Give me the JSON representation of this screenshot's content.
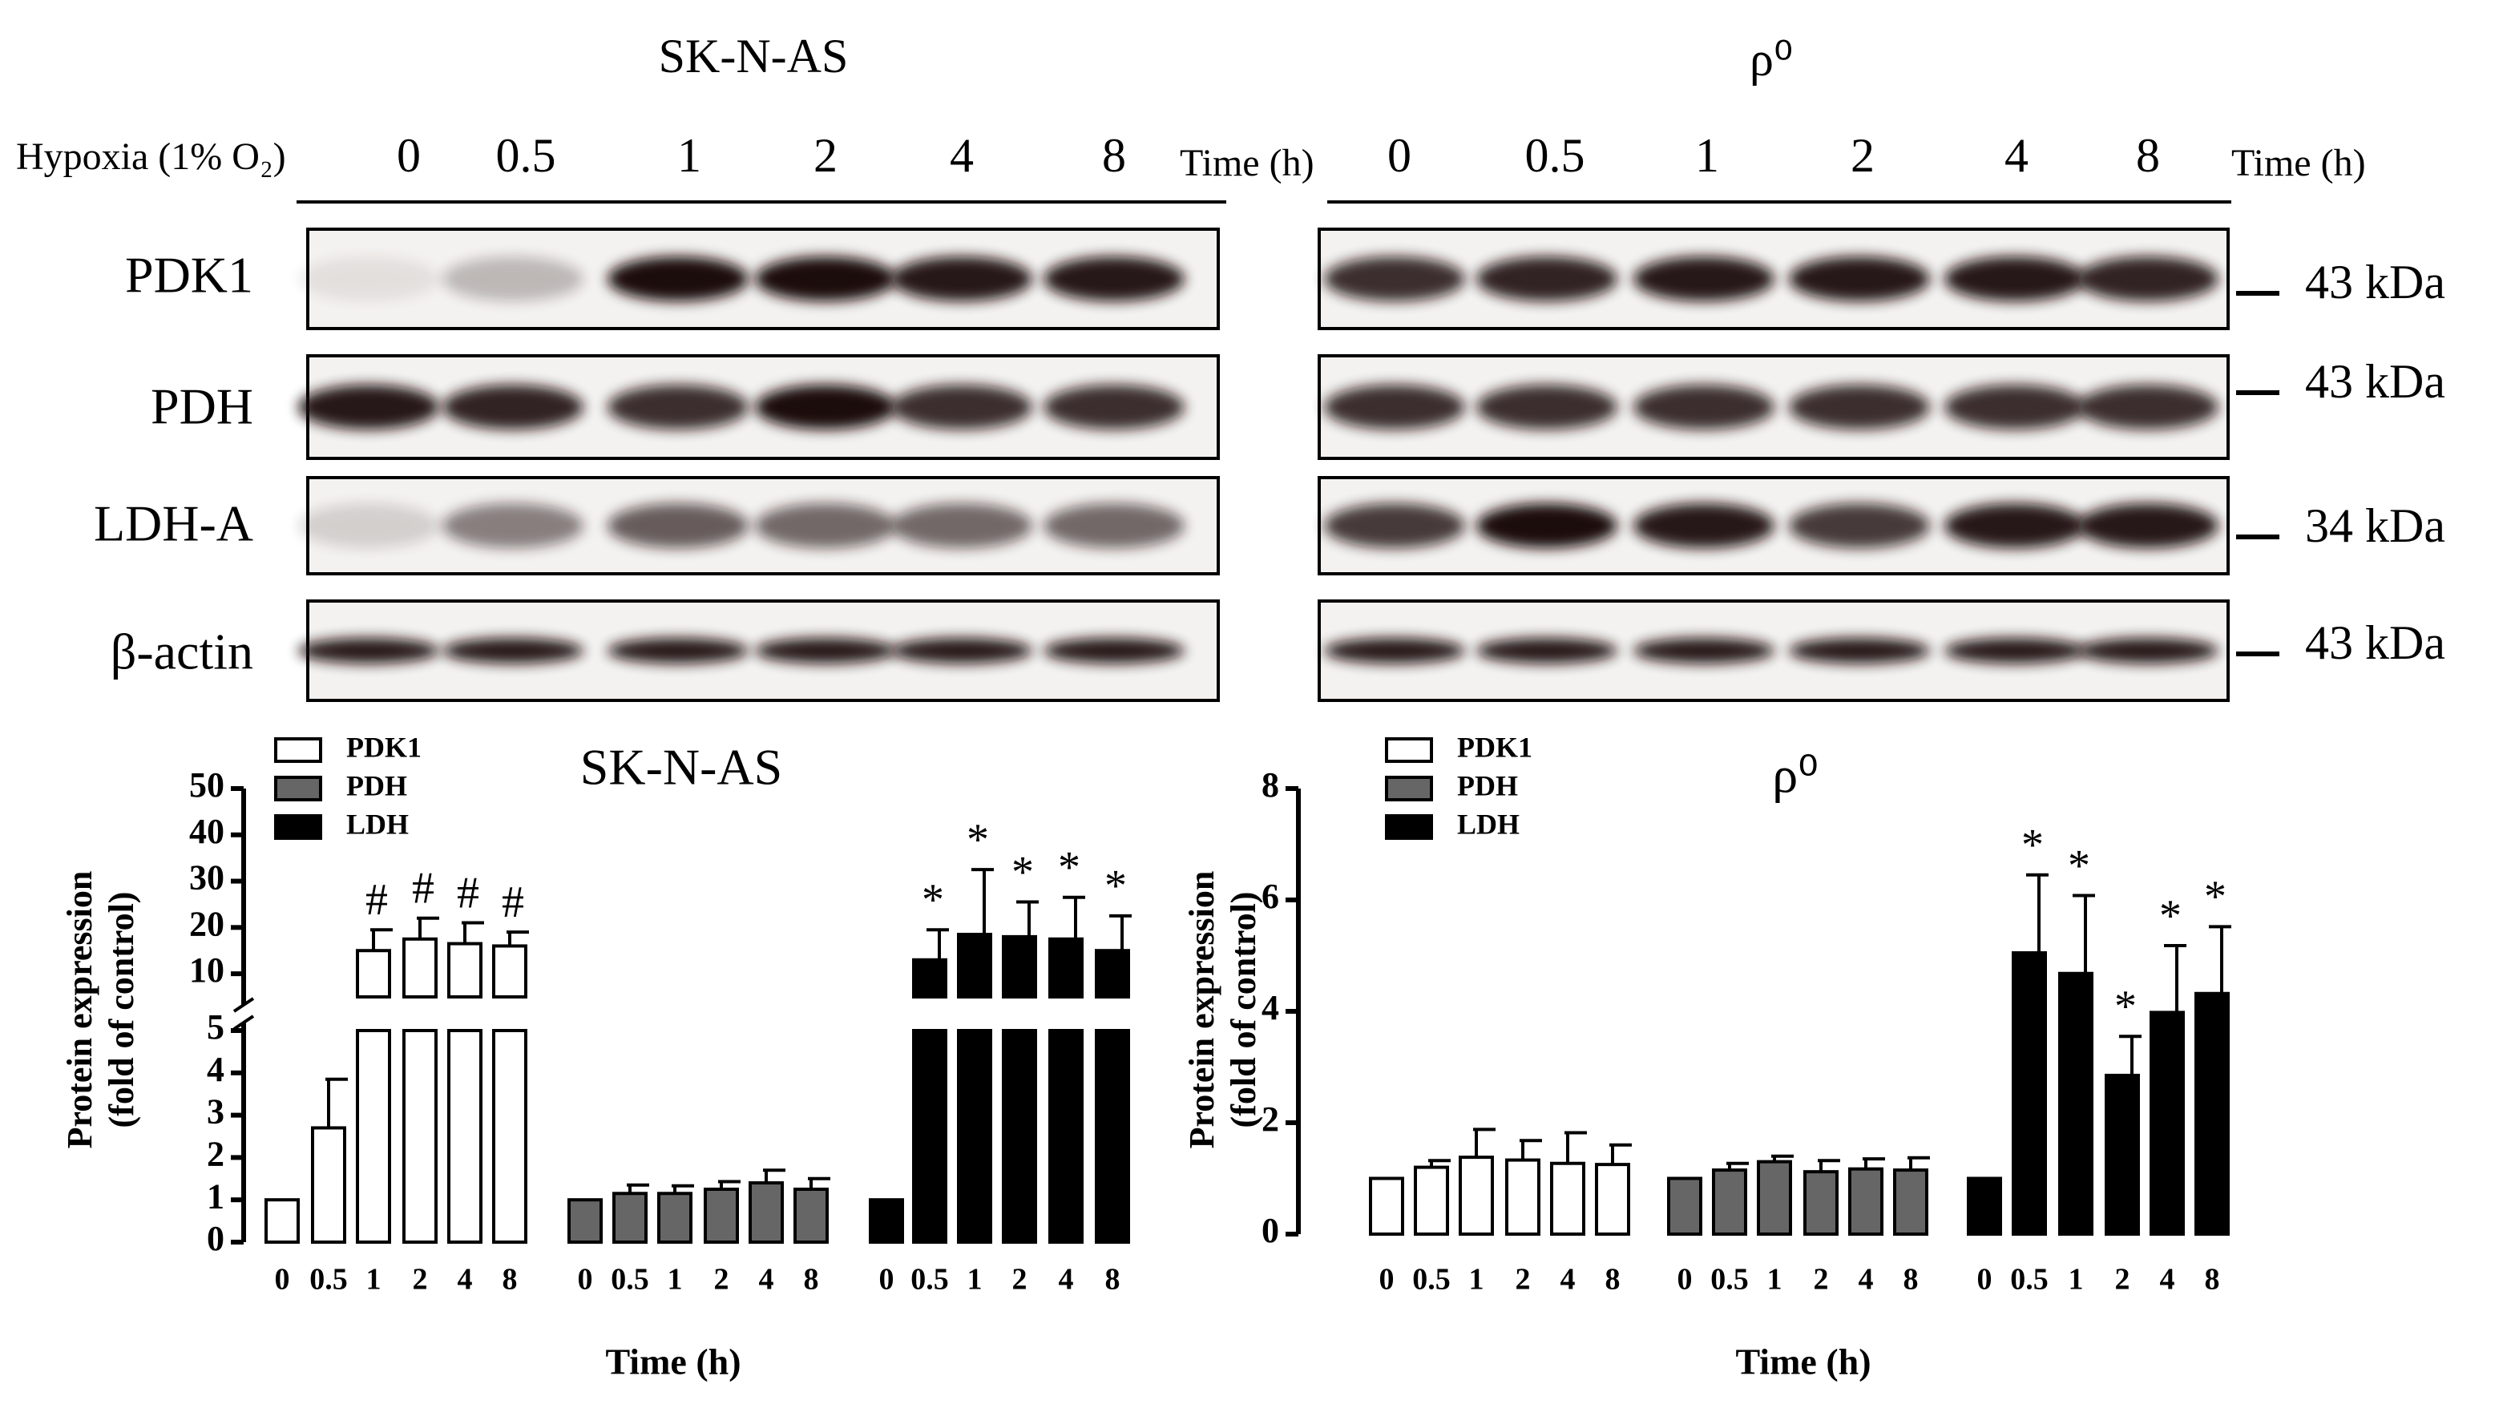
{
  "blots": {
    "titles": [
      "SK-N-AS",
      "ρ⁰"
    ],
    "condition": "Hypoxia (1% O₂)",
    "time_label": "Time (h)",
    "lanes": [
      "0",
      "0.5",
      "1",
      "2",
      "4",
      "8"
    ],
    "proteins": [
      "PDK1",
      "PDH",
      "LDH-A",
      "β-actin"
    ],
    "sizes": [
      "43 kDa",
      "43 kDa",
      "34 kDa",
      "43 kDa"
    ]
  },
  "chart_data": [
    {
      "type": "bar",
      "title": "SK-N-AS",
      "ylabel": [
        "Protein expression",
        "(fold of control)"
      ],
      "xlabel": "Time (h)",
      "categories": [
        "0",
        "0.5",
        "1",
        "2",
        "4",
        "8"
      ],
      "series": [
        {
          "name": "PDK1",
          "color": "#ffffff",
          "values": [
            1,
            2.7,
            15,
            17.5,
            16.5,
            16
          ],
          "errors": [
            0,
            1.15,
            4.5,
            4.5,
            4.5,
            3
          ],
          "markers": [
            null,
            null,
            "#",
            "#",
            "#",
            "#"
          ]
        },
        {
          "name": "PDH",
          "color": "#666666",
          "values": [
            1,
            1.15,
            1.15,
            1.25,
            1.4,
            1.25
          ],
          "errors": [
            0,
            0.2,
            0.18,
            0.18,
            0.3,
            0.25
          ],
          "markers": [
            null,
            null,
            null,
            null,
            null,
            null
          ]
        },
        {
          "name": "LDH",
          "color": "#000000",
          "values": [
            1,
            13,
            18.5,
            18,
            17.5,
            15
          ],
          "errors": [
            0,
            6.5,
            14,
            7.5,
            9,
            7.5
          ],
          "markers": [
            null,
            "*",
            "*",
            "*",
            "*",
            "*"
          ]
        }
      ],
      "ylim": [
        0,
        50
      ],
      "ybreak": 5,
      "yticks": [
        0,
        1,
        2,
        3,
        4,
        5,
        10,
        20,
        30,
        40,
        50
      ]
    },
    {
      "type": "bar",
      "title": "ρ⁰",
      "ylabel": [
        "Protein expression",
        "(fold of control)"
      ],
      "xlabel": "Time (h)",
      "categories": [
        "0",
        "0.5",
        "1",
        "2",
        "4",
        "8"
      ],
      "series": [
        {
          "name": "PDK1",
          "color": "#ffffff",
          "values": [
            1,
            1.2,
            1.38,
            1.33,
            1.27,
            1.25
          ],
          "errors": [
            0,
            0.12,
            0.5,
            0.35,
            0.55,
            0.35
          ],
          "markers": [
            null,
            null,
            null,
            null,
            null,
            null
          ]
        },
        {
          "name": "PDH",
          "color": "#666666",
          "values": [
            1,
            1.15,
            1.3,
            1.12,
            1.17,
            1.15
          ],
          "errors": [
            0,
            0.12,
            0.1,
            0.2,
            0.18,
            0.22
          ],
          "markers": [
            null,
            null,
            null,
            null,
            null,
            null
          ]
        },
        {
          "name": "LDH",
          "color": "#000000",
          "values": [
            1,
            5.05,
            4.68,
            2.85,
            3.98,
            4.32
          ],
          "errors": [
            0,
            1.4,
            1.4,
            0.7,
            1.2,
            1.2
          ],
          "markers": [
            null,
            "*",
            "*",
            "*",
            "*",
            "*"
          ]
        }
      ],
      "ylim": [
        0,
        8
      ],
      "yticks": [
        0,
        2,
        4,
        6,
        8
      ]
    }
  ]
}
